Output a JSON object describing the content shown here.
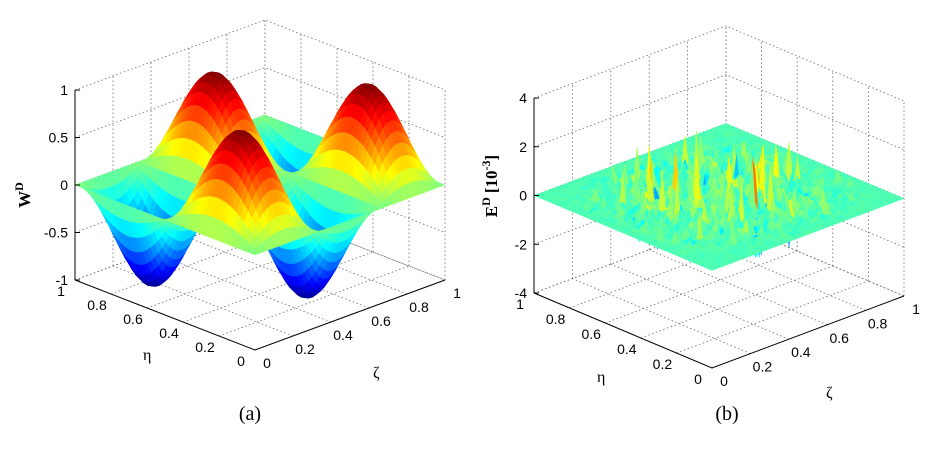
{
  "chart_data": [
    {
      "type": "surface3d",
      "caption": "(a)",
      "zlabel_base": "W",
      "zlabel_sup": "D",
      "xlabel": "η",
      "ylabel": "ζ",
      "zlim": [
        -1,
        1
      ],
      "zticks": [
        "1",
        "0.5",
        "0",
        "-0.5",
        "-1"
      ],
      "xticks": [
        "1",
        "0.8",
        "0.6",
        "0.4",
        "0.2",
        "0"
      ],
      "yticks": [
        "0",
        "0.2",
        "0.4",
        "0.6",
        "0.8",
        "1"
      ],
      "function": "sin(2πη)·sin(3πζ)",
      "colormap": "jet"
    },
    {
      "type": "surface3d",
      "caption": "(b)",
      "zlabel_base": "E",
      "zlabel_sup": "D",
      "zlabel_unit": "[10",
      "zlabel_unit_sup": "-3",
      "zlabel_unit_close": "]",
      "xlabel": "η",
      "ylabel": "ζ",
      "zlim": [
        -4,
        4
      ],
      "zticks": [
        "4",
        "2",
        "0",
        "-2",
        "-4"
      ],
      "xticks": [
        "1",
        "0.8",
        "0.6",
        "0.4",
        "0.2",
        "0"
      ],
      "yticks": [
        "0",
        "0.2",
        "0.4",
        "0.6",
        "0.8",
        "1"
      ],
      "amplitude": 2,
      "colormap": "jet",
      "grid": true
    }
  ]
}
